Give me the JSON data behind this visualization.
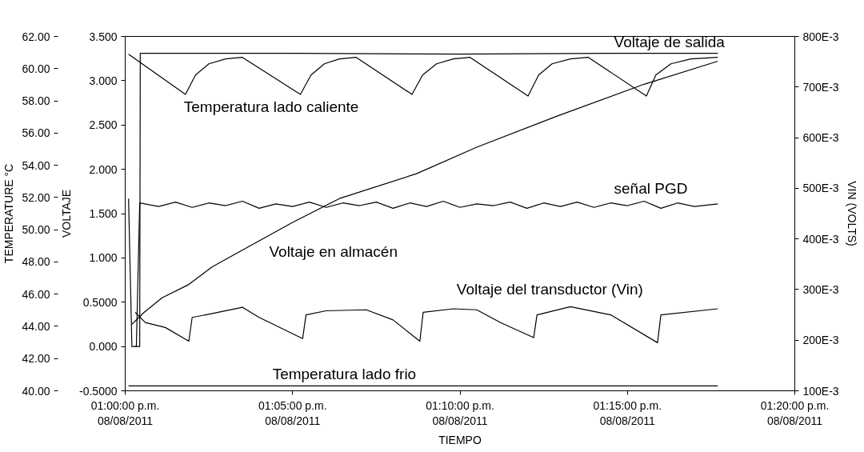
{
  "chart_data": {
    "type": "line",
    "xlabel": "TIEMPO",
    "ylabel": "TEMPERATURE °C",
    "y3label": "VOLTAJE",
    "y2label": "VIN (VOLTS)",
    "xlim": [
      "2011-08-08T13:00:00",
      "2011-08-08T13:20:00"
    ],
    "xticks": [
      {
        "value": "2011-08-08T13:00:00",
        "label": "01:00:00 p.m.\n08/08/2011"
      },
      {
        "value": "2011-08-08T13:05:00",
        "label": "01:05:00 p.m.\n08/08/2011"
      },
      {
        "value": "2011-08-08T13:10:00",
        "label": "01:10:00 p.m.\n08/08/2011"
      },
      {
        "value": "2011-08-08T13:15:00",
        "label": "01:15:00 p.m.\n08/08/2011"
      },
      {
        "value": "2011-08-08T13:20:00",
        "label": "01:20:00 p.m.\n08/08/2011"
      }
    ],
    "ylim": [
      40,
      62
    ],
    "yticks": [
      {
        "value": 40,
        "label": "40.00"
      },
      {
        "value": 42,
        "label": "42.00"
      },
      {
        "value": 44,
        "label": "44.00"
      },
      {
        "value": 46,
        "label": "46.00"
      },
      {
        "value": 48,
        "label": "48.00"
      },
      {
        "value": 50,
        "label": "50.00"
      },
      {
        "value": 52,
        "label": "52.00"
      },
      {
        "value": 54,
        "label": "54.00"
      },
      {
        "value": 56,
        "label": "56.00"
      },
      {
        "value": 58,
        "label": "58.00"
      },
      {
        "value": 60,
        "label": "60.00"
      },
      {
        "value": 62,
        "label": "62.00"
      }
    ],
    "y3lim": [
      -0.5,
      3.5
    ],
    "y3ticks": [
      {
        "value": -0.5,
        "label": "-0.5000"
      },
      {
        "value": 0,
        "label": "0.000"
      },
      {
        "value": 0.5,
        "label": "0.5000"
      },
      {
        "value": 1,
        "label": "1.000"
      },
      {
        "value": 1.5,
        "label": "1.500"
      },
      {
        "value": 2,
        "label": "2.000"
      },
      {
        "value": 2.5,
        "label": "2.500"
      },
      {
        "value": 3,
        "label": "3.000"
      },
      {
        "value": 3.5,
        "label": "3.500"
      }
    ],
    "y2lim": [
      0.1,
      0.8
    ],
    "y2ticks": [
      {
        "value": 0.1,
        "label": "100E-3"
      },
      {
        "value": 0.2,
        "label": "200E-3"
      },
      {
        "value": 0.3,
        "label": "300E-3"
      },
      {
        "value": 0.4,
        "label": "400E-3"
      },
      {
        "value": 0.5,
        "label": "500E-3"
      },
      {
        "value": 0.6,
        "label": "600E-3"
      },
      {
        "value": 0.7,
        "label": "700E-3"
      },
      {
        "value": 0.8,
        "label": "800E-3"
      }
    ],
    "grid": false,
    "legend": false,
    "marker": "none",
    "line_style": "solid",
    "series": [
      {
        "name": "Voltaje de salida",
        "color": "#000000",
        "axis": "y3",
        "x": [
          "2011-08-08T13:00:18",
          "2011-08-08T13:00:26",
          "2011-08-08T13:00:27",
          "2011-08-08T13:05:00",
          "2011-08-08T13:10:00",
          "2011-08-08T13:15:00",
          "2011-08-08T13:17:42"
        ],
        "values": [
          0.0,
          0.0,
          3.31,
          3.31,
          3.3,
          3.31,
          3.31
        ]
      },
      {
        "name": "Temperatura lado caliente",
        "color": "#000000",
        "axis": "y",
        "x": [
          "2011-08-08T13:00:06",
          "2011-08-08T13:01:48",
          "2011-08-08T13:02:06",
          "2011-08-08T13:02:30",
          "2011-08-08T13:03:00",
          "2011-08-08T13:03:30",
          "2011-08-08T13:05:14",
          "2011-08-08T13:05:33",
          "2011-08-08T13:05:57",
          "2011-08-08T13:06:24",
          "2011-08-08T13:06:54",
          "2011-08-08T13:08:34",
          "2011-08-08T13:08:53",
          "2011-08-08T13:09:18",
          "2011-08-08T13:09:48",
          "2011-08-08T13:10:18",
          "2011-08-08T13:12:02",
          "2011-08-08T13:12:21",
          "2011-08-08T13:12:45",
          "2011-08-08T13:13:18",
          "2011-08-08T13:13:50",
          "2011-08-08T13:15:34",
          "2011-08-08T13:15:51",
          "2011-08-08T13:16:18",
          "2011-08-08T13:16:54",
          "2011-08-08T13:17:42"
        ],
        "values": [
          60.9,
          58.4,
          59.6,
          60.3,
          60.6,
          60.7,
          58.4,
          59.6,
          60.3,
          60.6,
          60.7,
          58.4,
          59.6,
          60.3,
          60.6,
          60.7,
          58.3,
          59.6,
          60.3,
          60.6,
          60.7,
          58.3,
          59.6,
          60.3,
          60.6,
          60.7
        ]
      },
      {
        "name": "señal PGD",
        "color": "#000000",
        "axis": "y3",
        "x": [
          "2011-08-08T13:00:06",
          "2011-08-08T13:00:12",
          "2011-08-08T13:00:20",
          "2011-08-08T13:00:26",
          "2011-08-08T13:01:00",
          "2011-08-08T13:01:30",
          "2011-08-08T13:02:00",
          "2011-08-08T13:02:30",
          "2011-08-08T13:03:00",
          "2011-08-08T13:03:30",
          "2011-08-08T13:04:00",
          "2011-08-08T13:04:30",
          "2011-08-08T13:05:00",
          "2011-08-08T13:05:30",
          "2011-08-08T13:06:00",
          "2011-08-08T13:06:30",
          "2011-08-08T13:07:00",
          "2011-08-08T13:07:30",
          "2011-08-08T13:08:00",
          "2011-08-08T13:08:30",
          "2011-08-08T13:09:00",
          "2011-08-08T13:09:30",
          "2011-08-08T13:10:00",
          "2011-08-08T13:10:30",
          "2011-08-08T13:11:00",
          "2011-08-08T13:11:30",
          "2011-08-08T13:12:00",
          "2011-08-08T13:12:30",
          "2011-08-08T13:13:00",
          "2011-08-08T13:13:30",
          "2011-08-08T13:14:00",
          "2011-08-08T13:14:30",
          "2011-08-08T13:15:00",
          "2011-08-08T13:15:30",
          "2011-08-08T13:16:00",
          "2011-08-08T13:16:30",
          "2011-08-08T13:17:00",
          "2011-08-08T13:17:42"
        ],
        "values": [
          1.67,
          0.0,
          0.0,
          1.62,
          1.58,
          1.63,
          1.57,
          1.62,
          1.59,
          1.64,
          1.56,
          1.61,
          1.58,
          1.63,
          1.57,
          1.62,
          1.59,
          1.63,
          1.56,
          1.62,
          1.58,
          1.64,
          1.57,
          1.61,
          1.59,
          1.63,
          1.56,
          1.62,
          1.58,
          1.63,
          1.57,
          1.62,
          1.59,
          1.64,
          1.56,
          1.62,
          1.58,
          1.61
        ]
      },
      {
        "name": "Voltaje en almacén",
        "color": "#000000",
        "axis": "y3",
        "x": [
          "2011-08-08T13:00:12",
          "2011-08-08T13:00:33",
          "2011-08-08T13:01:06",
          "2011-08-08T13:01:54",
          "2011-08-08T13:02:36",
          "2011-08-08T13:03:42",
          "2011-08-08T13:05:00",
          "2011-08-08T13:06:24",
          "2011-08-08T13:08:42",
          "2011-08-08T13:10:30",
          "2011-08-08T13:12:54",
          "2011-08-08T13:15:30",
          "2011-08-08T13:17:42"
        ],
        "values": [
          0.25,
          0.38,
          0.55,
          0.7,
          0.9,
          1.13,
          1.4,
          1.67,
          1.95,
          2.25,
          2.6,
          2.96,
          3.22
        ]
      },
      {
        "name": "Voltaje del transductor (Vin)",
        "color": "#000000",
        "axis": "y2",
        "x": [
          "2011-08-08T13:00:18",
          "2011-08-08T13:00:36",
          "2011-08-08T13:01:12",
          "2011-08-08T13:01:54",
          "2011-08-08T13:02:00",
          "2011-08-08T13:02:24",
          "2011-08-08T13:03:30",
          "2011-08-08T13:04:00",
          "2011-08-08T13:05:18",
          "2011-08-08T13:05:24",
          "2011-08-08T13:06:00",
          "2011-08-08T13:07:12",
          "2011-08-08T13:08:00",
          "2011-08-08T13:08:48",
          "2011-08-08T13:08:54",
          "2011-08-08T13:09:48",
          "2011-08-08T13:10:30",
          "2011-08-08T13:11:12",
          "2011-08-08T13:12:12",
          "2011-08-08T13:12:18",
          "2011-08-08T13:13:18",
          "2011-08-08T13:14:30",
          "2011-08-08T13:15:54",
          "2011-08-08T13:16:00",
          "2011-08-08T13:17:42"
        ],
        "values": [
          0.255,
          0.235,
          0.225,
          0.198,
          0.245,
          0.25,
          0.265,
          0.245,
          0.203,
          0.25,
          0.258,
          0.26,
          0.24,
          0.198,
          0.255,
          0.262,
          0.26,
          0.235,
          0.205,
          0.25,
          0.266,
          0.25,
          0.195,
          0.25,
          0.262
        ]
      },
      {
        "name": "Temperatura lado frio",
        "color": "#000000",
        "axis": "y",
        "x": [
          "2011-08-08T13:00:06",
          "2011-08-08T13:05:00",
          "2011-08-08T13:10:00",
          "2011-08-08T13:15:00",
          "2011-08-08T13:17:42"
        ],
        "values": [
          40.3,
          40.3,
          40.3,
          40.3,
          40.3
        ]
      }
    ]
  }
}
